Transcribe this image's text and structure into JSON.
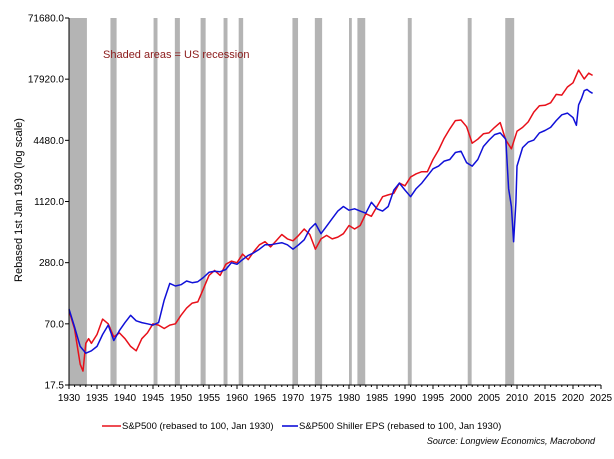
{
  "chart_data": {
    "type": "line",
    "y_scale": "log",
    "ylabel": "Rebased 1st Jan 1930 (log scale)",
    "xlabel": "",
    "xlim": [
      1930,
      2025
    ],
    "ylim": [
      17.5,
      71680
    ],
    "x_ticks": [
      "1930",
      "1935",
      "1940",
      "1945",
      "1950",
      "1955",
      "1960",
      "1965",
      "1970",
      "1975",
      "1980",
      "1985",
      "1990",
      "1995",
      "2000",
      "2005",
      "2010",
      "2015",
      "2020",
      "2025"
    ],
    "y_ticks": [
      {
        "value": 17.5,
        "label": "17.5"
      },
      {
        "value": 70,
        "label": "70.0"
      },
      {
        "value": 280,
        "label": "280.0"
      },
      {
        "value": 1120,
        "label": "1120.0"
      },
      {
        "value": 4480,
        "label": "4480.0"
      },
      {
        "value": 17920,
        "label": "17920.0"
      },
      {
        "value": 71680,
        "label": "71680.0"
      }
    ],
    "grid": false,
    "annotation": "Shaded areas = US recession",
    "recession_color": "#b4b4b4",
    "recessions": [
      [
        1930.0,
        1933.2
      ],
      [
        1937.4,
        1938.5
      ],
      [
        1945.1,
        1945.8
      ],
      [
        1948.9,
        1949.8
      ],
      [
        1953.5,
        1954.4
      ],
      [
        1957.6,
        1958.3
      ],
      [
        1960.3,
        1961.1
      ],
      [
        1969.9,
        1970.9
      ],
      [
        1973.9,
        1975.2
      ],
      [
        1980.0,
        1980.5
      ],
      [
        1981.5,
        1982.9
      ],
      [
        1990.5,
        1991.2
      ],
      [
        2001.2,
        2001.9
      ],
      [
        2007.9,
        2009.5
      ]
    ],
    "series": [
      {
        "name": "S&P500 (rebased to 100, Jan 1930)",
        "color": "#e8101a",
        "x": [
          1930,
          1931,
          1932,
          1932.5,
          1933,
          1933.5,
          1934,
          1935,
          1936,
          1937,
          1938,
          1939,
          1940,
          1941,
          1942,
          1943,
          1944,
          1945,
          1946,
          1947,
          1948,
          1949,
          1950,
          1951,
          1952,
          1953,
          1954,
          1955,
          1956,
          1957,
          1958,
          1959,
          1960,
          1961,
          1962,
          1963,
          1964,
          1965,
          1966,
          1967,
          1968,
          1969,
          1970,
          1971,
          1972,
          1973,
          1974,
          1975,
          1976,
          1977,
          1978,
          1979,
          1980,
          1981,
          1982,
          1983,
          1984,
          1985,
          1986,
          1987,
          1988,
          1989,
          1990,
          1991,
          1992,
          1993,
          1994,
          1995,
          1996,
          1997,
          1998,
          1999,
          2000,
          2001,
          2002,
          2003,
          2004,
          2005,
          2006,
          2007,
          2008,
          2009,
          2010,
          2011,
          2012,
          2013,
          2014,
          2015,
          2016,
          2017,
          2018,
          2019,
          2020,
          2021,
          2022,
          2022.8,
          2023.5
        ],
        "values": [
          95,
          62,
          28,
          24,
          45,
          50,
          45,
          55,
          78,
          70,
          52,
          57,
          50,
          42,
          38,
          50,
          57,
          70,
          68,
          63,
          68,
          70,
          85,
          100,
          112,
          115,
          155,
          210,
          235,
          210,
          270,
          290,
          280,
          340,
          300,
          360,
          420,
          450,
          400,
          460,
          530,
          480,
          460,
          520,
          600,
          530,
          380,
          480,
          520,
          480,
          500,
          540,
          650,
          600,
          650,
          850,
          800,
          1000,
          1250,
          1300,
          1350,
          1700,
          1600,
          1950,
          2100,
          2200,
          2200,
          2900,
          3600,
          4700,
          5800,
          7000,
          7100,
          6100,
          4200,
          4600,
          5200,
          5300,
          6000,
          6700,
          4500,
          3700,
          5500,
          6000,
          6800,
          8500,
          9800,
          9900,
          10500,
          12700,
          12500,
          15000,
          16500,
          22000,
          18000,
          20500,
          19500
        ]
      },
      {
        "name": "S&P500 Shiller EPS (rebased to 100, Jan 1930)",
        "color": "#1010d8",
        "x": [
          1930,
          1931,
          1932,
          1933,
          1934,
          1935,
          1936,
          1937,
          1938,
          1939,
          1940,
          1941,
          1942,
          1943,
          1944,
          1945,
          1946,
          1947,
          1948,
          1949,
          1950,
          1951,
          1952,
          1953,
          1954,
          1955,
          1956,
          1957,
          1958,
          1959,
          1960,
          1961,
          1962,
          1963,
          1964,
          1965,
          1966,
          1967,
          1968,
          1969,
          1970,
          1971,
          1972,
          1973,
          1974,
          1975,
          1976,
          1977,
          1978,
          1979,
          1980,
          1981,
          1982,
          1983,
          1984,
          1985,
          1986,
          1987,
          1988,
          1989,
          1990,
          1991,
          1992,
          1993,
          1994,
          1995,
          1996,
          1997,
          1998,
          1999,
          2000,
          2001,
          2002,
          2003,
          2004,
          2005,
          2006,
          2007,
          2008,
          2008.5,
          2009,
          2009.4,
          2009.8,
          2010,
          2011,
          2012,
          2013,
          2014,
          2015,
          2016,
          2017,
          2018,
          2019,
          2020,
          2020.6,
          2021,
          2021.5,
          2022,
          2022.5,
          2023,
          2023.5
        ],
        "values": [
          98,
          65,
          42,
          36,
          38,
          42,
          55,
          68,
          48,
          60,
          72,
          85,
          75,
          72,
          70,
          68,
          72,
          120,
          175,
          165,
          170,
          185,
          178,
          182,
          200,
          225,
          230,
          228,
          240,
          280,
          270,
          300,
          330,
          350,
          380,
          420,
          420,
          430,
          440,
          420,
          380,
          420,
          470,
          600,
          680,
          540,
          640,
          760,
          900,
          1000,
          920,
          950,
          900,
          860,
          1100,
          950,
          900,
          1000,
          1450,
          1700,
          1450,
          1250,
          1500,
          1700,
          2000,
          2350,
          2500,
          2800,
          2900,
          3400,
          3500,
          2700,
          2500,
          2900,
          3900,
          4500,
          5100,
          5300,
          4600,
          1500,
          1000,
          450,
          1100,
          2500,
          3800,
          4300,
          4500,
          5300,
          5600,
          6000,
          7000,
          8000,
          8300,
          7500,
          6300,
          10000,
          11500,
          13800,
          14200,
          13500,
          13000
        ]
      }
    ],
    "legend": {
      "placement": "bottom-center",
      "entries": [
        "S&P500 (rebased to 100, Jan 1930)",
        "S&P500 Shiller EPS (rebased to 100, Jan 1930)"
      ]
    },
    "source": "Source: Longview Economics, Macrobond"
  }
}
